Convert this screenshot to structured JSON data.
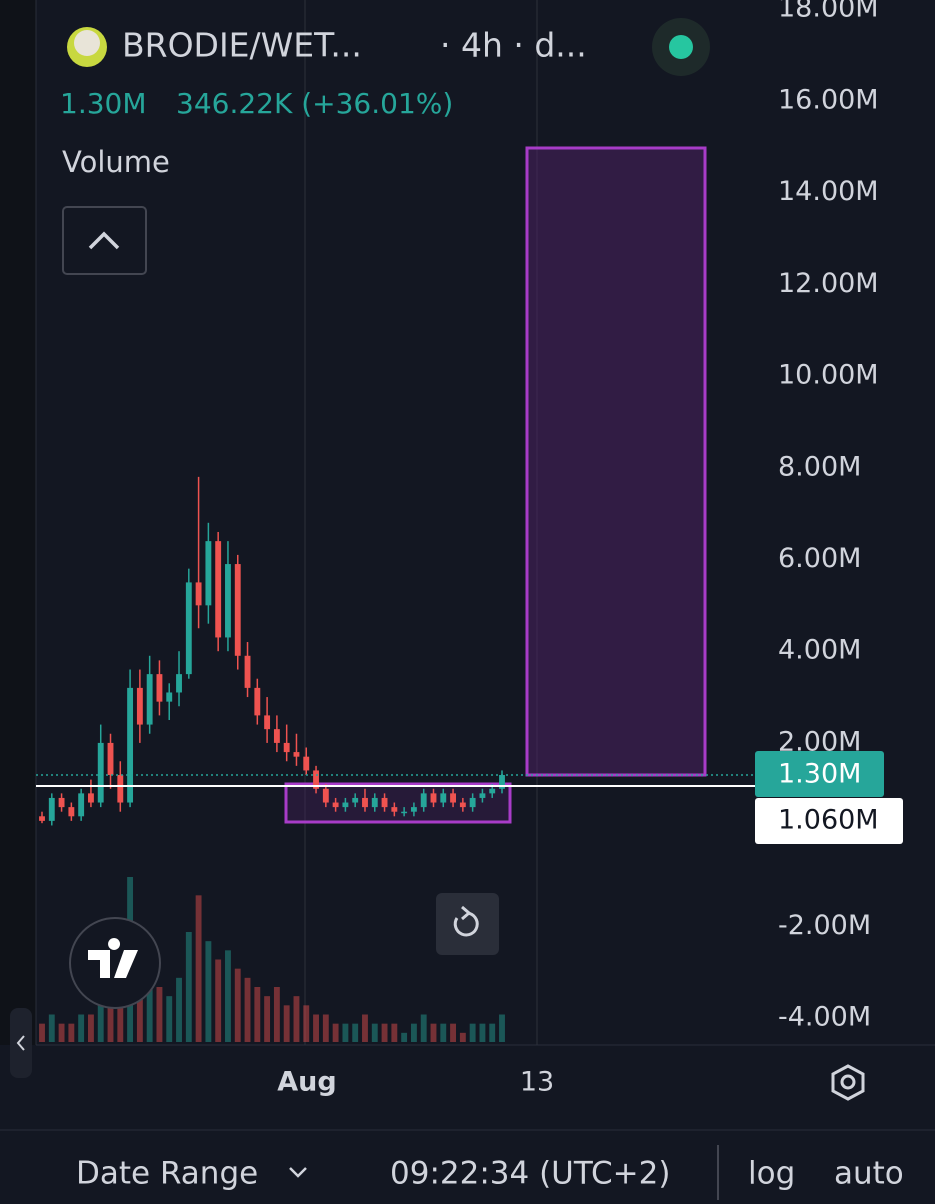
{
  "chart_data": {
    "type": "candlestick",
    "title": "BRODIE/WET...",
    "interval": "· 4h · d...",
    "last_label": "1.30M",
    "change_label": "346.22K (+36.01%)",
    "indicator": "Volume",
    "up_color": "#26a69a",
    "down_color": "#ef5350",
    "open": [
      0.4,
      0.3,
      0.8,
      0.6,
      0.4,
      0.9,
      0.7,
      2.0,
      1.3,
      0.7,
      3.2,
      2.4,
      3.5,
      2.9,
      3.1,
      3.5,
      5.5,
      5.0,
      6.4,
      4.3,
      5.9,
      3.9,
      3.2,
      2.6,
      2.3,
      2.0,
      1.8,
      1.7,
      1.4,
      1.0,
      0.7,
      0.6,
      0.7,
      0.8,
      0.6,
      0.8,
      0.6,
      0.5,
      0.5,
      0.6,
      0.9,
      0.7,
      0.9,
      0.7,
      0.6,
      0.8,
      0.9,
      1.0
    ],
    "high": [
      0.5,
      0.9,
      0.9,
      0.7,
      1.0,
      1.2,
      2.4,
      2.2,
      1.6,
      3.6,
      3.6,
      3.9,
      3.8,
      3.3,
      4.0,
      5.8,
      7.8,
      6.8,
      6.6,
      6.4,
      6.1,
      4.2,
      3.4,
      3.0,
      2.6,
      2.4,
      2.2,
      1.9,
      1.5,
      1.1,
      0.8,
      0.8,
      0.9,
      1.0,
      0.9,
      0.9,
      0.7,
      0.6,
      0.7,
      1.0,
      1.0,
      1.0,
      1.0,
      0.8,
      0.9,
      1.0,
      1.1,
      1.4
    ],
    "low": [
      0.25,
      0.2,
      0.5,
      0.3,
      0.3,
      0.6,
      0.6,
      1.0,
      0.5,
      0.6,
      2.0,
      2.2,
      2.6,
      2.5,
      2.8,
      3.4,
      4.5,
      4.6,
      4.0,
      4.0,
      3.6,
      3.0,
      2.4,
      2.0,
      1.8,
      1.6,
      1.5,
      1.3,
      0.9,
      0.6,
      0.5,
      0.5,
      0.6,
      0.5,
      0.5,
      0.5,
      0.4,
      0.4,
      0.4,
      0.5,
      0.6,
      0.6,
      0.6,
      0.5,
      0.5,
      0.7,
      0.8,
      0.9
    ],
    "close": [
      0.3,
      0.8,
      0.6,
      0.4,
      0.9,
      0.7,
      2.0,
      1.3,
      0.7,
      3.2,
      2.4,
      3.5,
      2.9,
      3.1,
      3.5,
      5.5,
      5.0,
      6.4,
      4.3,
      5.9,
      3.9,
      3.2,
      2.6,
      2.3,
      2.0,
      1.8,
      1.7,
      1.4,
      1.0,
      0.7,
      0.6,
      0.7,
      0.8,
      0.6,
      0.8,
      0.6,
      0.5,
      0.5,
      0.6,
      0.9,
      0.7,
      0.9,
      0.7,
      0.6,
      0.8,
      0.9,
      1.0,
      1.3
    ],
    "volume": [
      2,
      3,
      2,
      2,
      3,
      3,
      9,
      4,
      5,
      18,
      8,
      7,
      6,
      5,
      7,
      12,
      16,
      11,
      9,
      10,
      8,
      7,
      6,
      5,
      6,
      4,
      5,
      4,
      3,
      3,
      2,
      2,
      2,
      3,
      2,
      2,
      2,
      1,
      2,
      3,
      2,
      2,
      2,
      1,
      2,
      2,
      2,
      3
    ],
    "ylim": [
      -4.5,
      18.2
    ],
    "yticks": [
      {
        "value": -4,
        "label": "-4.00M"
      },
      {
        "value": -2,
        "label": "-2.00M"
      },
      {
        "value": 2,
        "label": "2.00M"
      },
      {
        "value": 4,
        "label": "4.00M"
      },
      {
        "value": 6,
        "label": "6.00M"
      },
      {
        "value": 8,
        "label": "8.00M"
      },
      {
        "value": 10,
        "label": "10.00M"
      },
      {
        "value": 12,
        "label": "12.00M"
      },
      {
        "value": 14,
        "label": "14.00M"
      },
      {
        "value": 16,
        "label": "16.00M"
      },
      {
        "value": 18,
        "label": "18.00M"
      }
    ],
    "price_line": {
      "value": 1.06,
      "label": "1.060M"
    },
    "x_labels": [
      "Aug",
      "13"
    ],
    "grid": true,
    "footer": {
      "range": "Date Range",
      "time": "09:22:34 (UTC+2)",
      "log": "log",
      "auto": "auto"
    }
  }
}
